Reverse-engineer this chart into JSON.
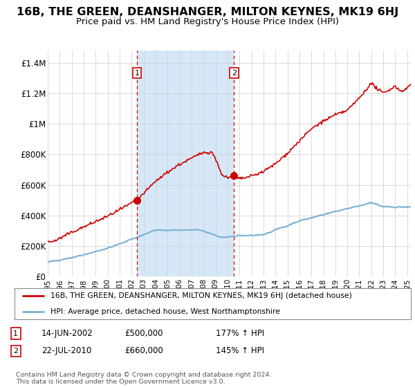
{
  "title": "16B, THE GREEN, DEANSHANGER, MILTON KEYNES, MK19 6HJ",
  "subtitle": "Price paid vs. HM Land Registry's House Price Index (HPI)",
  "title_fontsize": 11.5,
  "subtitle_fontsize": 9.5,
  "background_color": "#ffffff",
  "plot_bg_color": "#ffffff",
  "highlight_color": "#d6e8f7",
  "grid_color": "#cccccc",
  "ylabel_labels": [
    "£0",
    "£200K",
    "£400K",
    "£600K",
    "£800K",
    "£1M",
    "£1.2M",
    "£1.4M"
  ],
  "ylabel_values": [
    0,
    200000,
    400000,
    600000,
    800000,
    1000000,
    1200000,
    1400000
  ],
  "ylim": [
    0,
    1480000
  ],
  "xlim_start": 1995.0,
  "xlim_end": 2025.3,
  "sale1_x": 2002.45,
  "sale1_y": 500000,
  "sale2_x": 2010.55,
  "sale2_y": 660000,
  "legend_line1": "16B, THE GREEN, DEANSHANGER, MILTON KEYNES, MK19 6HJ (detached house)",
  "legend_line2": "HPI: Average price, detached house, West Northamptonshire",
  "annotation1_date": "14-JUN-2002",
  "annotation1_price": "£500,000",
  "annotation1_hpi": "177% ↑ HPI",
  "annotation2_date": "22-JUL-2010",
  "annotation2_price": "£660,000",
  "annotation2_hpi": "145% ↑ HPI",
  "footer": "Contains HM Land Registry data © Crown copyright and database right 2024.\nThis data is licensed under the Open Government Licence v3.0.",
  "red_line_color": "#cc0000",
  "blue_line_color": "#7ab0d4",
  "dashed_vline_color": "#cc0000"
}
